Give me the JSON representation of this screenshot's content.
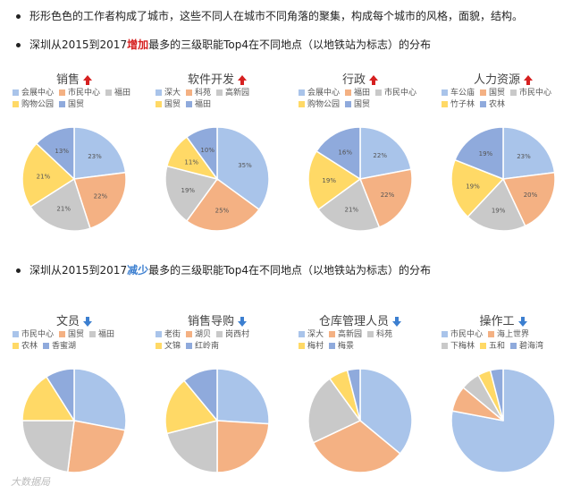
{
  "intro": {
    "line1": "形形色色的工作者构成了城市，这些不同人在城市不同角落的聚集，构成每个城市的风格，面貌，结构。",
    "line2_pre": "深圳从2015到2017",
    "line2_hl": "增加",
    "line2_post": "最多的三级职能Top4在不同地点（以地铁站为标志）的分布",
    "line3_pre": "深圳从2015到2017",
    "line3_hl": "减少",
    "line3_post": "最多的三级职能Top4在不同地点（以地铁站为标志）的分布"
  },
  "watermark": "大数据局",
  "colors": {
    "blue": "#a9c4ea",
    "orange": "#f4b183",
    "gray": "#c9c9c9",
    "yellow": "#ffd966",
    "darkblue": "#8faadc",
    "up_arrow": "#d62020",
    "down_arrow": "#3c7fd0"
  },
  "chart_data": [
    {
      "type": "pie",
      "title": "销售",
      "trend": "up",
      "labels": [
        "会展中心",
        "市民中心",
        "福田",
        "购物公园",
        "国贸"
      ],
      "values": [
        23,
        22,
        21,
        21,
        13
      ],
      "data_labels": [
        "23%",
        "22%",
        "21%",
        "21%",
        "13%"
      ]
    },
    {
      "type": "pie",
      "title": "软件开发",
      "trend": "up",
      "labels": [
        "深大",
        "科苑",
        "高新园",
        "国贸",
        "福田"
      ],
      "values": [
        35,
        25,
        19,
        11,
        10
      ],
      "data_labels": [
        "35%",
        "25%",
        "19%",
        "11%",
        "10%"
      ]
    },
    {
      "type": "pie",
      "title": "行政",
      "trend": "up",
      "labels": [
        "会展中心",
        "福田",
        "市民中心",
        "购物公园",
        "国贸"
      ],
      "values": [
        22,
        22,
        21,
        19,
        16
      ],
      "data_labels": [
        "22%",
        "22%",
        "21%",
        "19%",
        "16%"
      ]
    },
    {
      "type": "pie",
      "title": "人力资源",
      "trend": "up",
      "labels": [
        "车公庙",
        "国贸",
        "市民中心",
        "竹子林",
        "农林"
      ],
      "values": [
        23,
        20,
        19,
        19,
        19
      ],
      "data_labels": [
        "23%",
        "20%",
        "19%",
        "19%",
        "19%"
      ]
    },
    {
      "type": "pie",
      "title": "文员",
      "trend": "down",
      "labels": [
        "市民中心",
        "国贸",
        "福田",
        "农林",
        "香蜜湖"
      ],
      "values": [
        28,
        24,
        23,
        16,
        9
      ],
      "data_labels": []
    },
    {
      "type": "pie",
      "title": "销售导购",
      "trend": "down",
      "labels": [
        "老街",
        "湖贝",
        "岗西村",
        "文锦",
        "红岭南"
      ],
      "values": [
        26,
        24,
        21,
        18,
        11
      ],
      "data_labels": []
    },
    {
      "type": "pie",
      "title": "仓库管理人员",
      "trend": "down",
      "labels": [
        "深大",
        "高新园",
        "科苑",
        "梅村",
        "梅景"
      ],
      "values": [
        36,
        32,
        22,
        6,
        4
      ],
      "data_labels": []
    },
    {
      "type": "pie",
      "title": "操作工",
      "trend": "down",
      "labels": [
        "市民中心",
        "海上世界",
        "下梅林",
        "五和",
        "碧海湾"
      ],
      "values": [
        78,
        8,
        6,
        4,
        4
      ],
      "data_labels": []
    }
  ]
}
